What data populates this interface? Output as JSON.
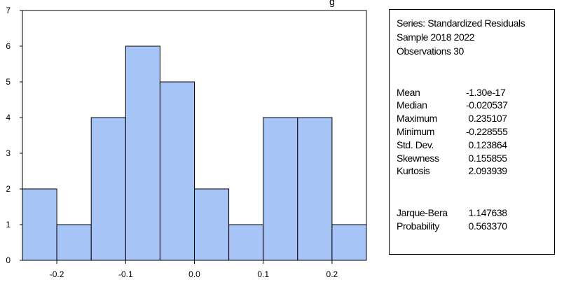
{
  "chart_data": {
    "type": "bar",
    "title_fragment": "g",
    "bins": [
      {
        "from": -0.25,
        "to": -0.2,
        "count": 2
      },
      {
        "from": -0.2,
        "to": -0.15,
        "count": 1
      },
      {
        "from": -0.15,
        "to": -0.1,
        "count": 4
      },
      {
        "from": -0.1,
        "to": -0.05,
        "count": 6
      },
      {
        "from": -0.05,
        "to": 0.0,
        "count": 5
      },
      {
        "from": 0.0,
        "to": 0.05,
        "count": 2
      },
      {
        "from": 0.05,
        "to": 0.1,
        "count": 1
      },
      {
        "from": 0.1,
        "to": 0.15,
        "count": 4
      },
      {
        "from": 0.15,
        "to": 0.2,
        "count": 4
      },
      {
        "from": 0.2,
        "to": 0.25,
        "count": 1
      }
    ],
    "xlim": [
      -0.25,
      0.25
    ],
    "ylim": [
      0,
      7
    ],
    "x_ticks": [
      "-0.2",
      "-0.1",
      "0.0",
      "0.1",
      "0.2"
    ],
    "y_ticks": [
      "0",
      "1",
      "2",
      "3",
      "4",
      "5",
      "6",
      "7"
    ],
    "bar_color": "#a6c4f5",
    "grid": false
  },
  "stats": {
    "series_line": "Series: Standardized Residuals",
    "sample_line": "Sample 2018 2022",
    "obs_line": "Observations 30",
    "rows": [
      {
        "label": "Mean",
        "value": "-1.30e-17"
      },
      {
        "label": "Median",
        "value": "-0.020537"
      },
      {
        "label": "Maximum",
        "value": " 0.235107"
      },
      {
        "label": "Minimum",
        "value": "-0.228555"
      },
      {
        "label": "Std. Dev.",
        "value": " 0.123864"
      },
      {
        "label": "Skewness",
        "value": " 0.155855"
      },
      {
        "label": "Kurtosis",
        "value": " 2.093939"
      },
      {
        "label": "Jarque-Bera",
        "value": " 1.147638"
      },
      {
        "label": "Probability",
        "value": " 0.563370"
      }
    ]
  }
}
